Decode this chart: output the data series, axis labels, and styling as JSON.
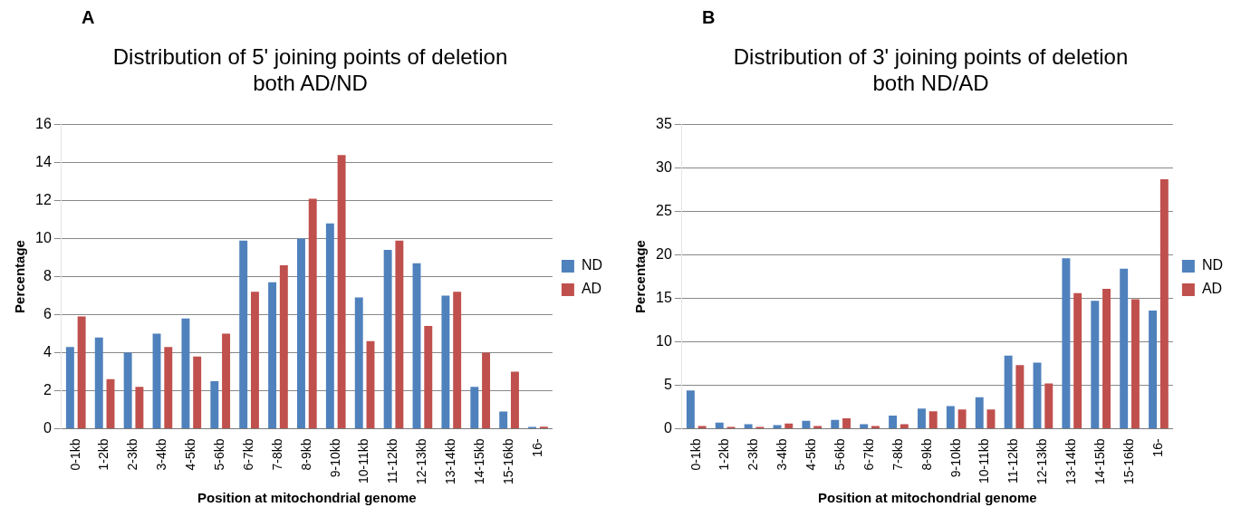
{
  "chart_data": [
    {
      "type": "bar",
      "title": "Distribution of 5' joining points of deletion both AD/ND",
      "annotations": [
        "A"
      ],
      "xlabel": "Position at mitochondrial genome",
      "ylabel": "Percentage",
      "categories": [
        "0-1kb",
        "1-2kb",
        "2-3kb",
        "3-4kb",
        "4-5kb",
        "5-6kb",
        "6-7kb",
        "7-8kb",
        "8-9kb",
        "9-10kb",
        "10-11kb",
        "11-12kb",
        "12-13kb",
        "13-14kb",
        "14-15kb",
        "15-16kb",
        "16-"
      ],
      "series": [
        {
          "name": "ND",
          "color": "#4f81bd",
          "values": [
            4.3,
            4.8,
            4.0,
            5.0,
            5.8,
            2.5,
            9.9,
            7.7,
            10.0,
            10.8,
            6.9,
            9.4,
            8.7,
            7.0,
            2.2,
            0.9,
            0.05
          ]
        },
        {
          "name": "AD",
          "color": "#c0504d",
          "values": [
            5.9,
            2.6,
            2.2,
            4.3,
            3.8,
            5.0,
            7.2,
            8.6,
            12.1,
            14.4,
            4.6,
            9.9,
            5.4,
            7.2,
            4.0,
            3.0,
            0.1
          ]
        }
      ],
      "ylim": [
        0,
        16
      ],
      "yticks": [
        0,
        2,
        4,
        6,
        8,
        10,
        12,
        14,
        16
      ],
      "grid": "y",
      "legend": "right"
    },
    {
      "type": "bar",
      "title": "Distribution of 3' joining points of deletion both ND/AD",
      "annotations": [
        "B"
      ],
      "xlabel": "Position at mitochondrial genome",
      "ylabel": "Percentage",
      "categories": [
        "0-1kb",
        "1-2kb",
        "2-3kb",
        "3-4kb",
        "4-5kb",
        "5-6kb",
        "6-7kb",
        "7-8kb",
        "8-9kb",
        "9-10kb",
        "10-11kb",
        "11-12kb",
        "12-13kb",
        "13-14kb",
        "14-15kb",
        "15-16kb",
        "16-"
      ],
      "series": [
        {
          "name": "ND",
          "color": "#4f81bd",
          "values": [
            4.4,
            0.7,
            0.5,
            0.4,
            0.9,
            1.0,
            0.5,
            1.5,
            2.3,
            2.6,
            3.6,
            8.4,
            7.6,
            19.6,
            14.7,
            18.4,
            13.6
          ]
        },
        {
          "name": "AD",
          "color": "#c0504d",
          "values": [
            0.3,
            0,
            0.1,
            0.6,
            0.3,
            1.2,
            0.3,
            0.5,
            2.0,
            2.2,
            2.2,
            7.3,
            5.2,
            15.6,
            16.1,
            14.9,
            28.7
          ]
        }
      ],
      "ylim": [
        0,
        35
      ],
      "yticks": [
        0,
        5,
        10,
        15,
        20,
        25,
        30,
        35
      ],
      "grid": "y",
      "legend": "right"
    }
  ]
}
